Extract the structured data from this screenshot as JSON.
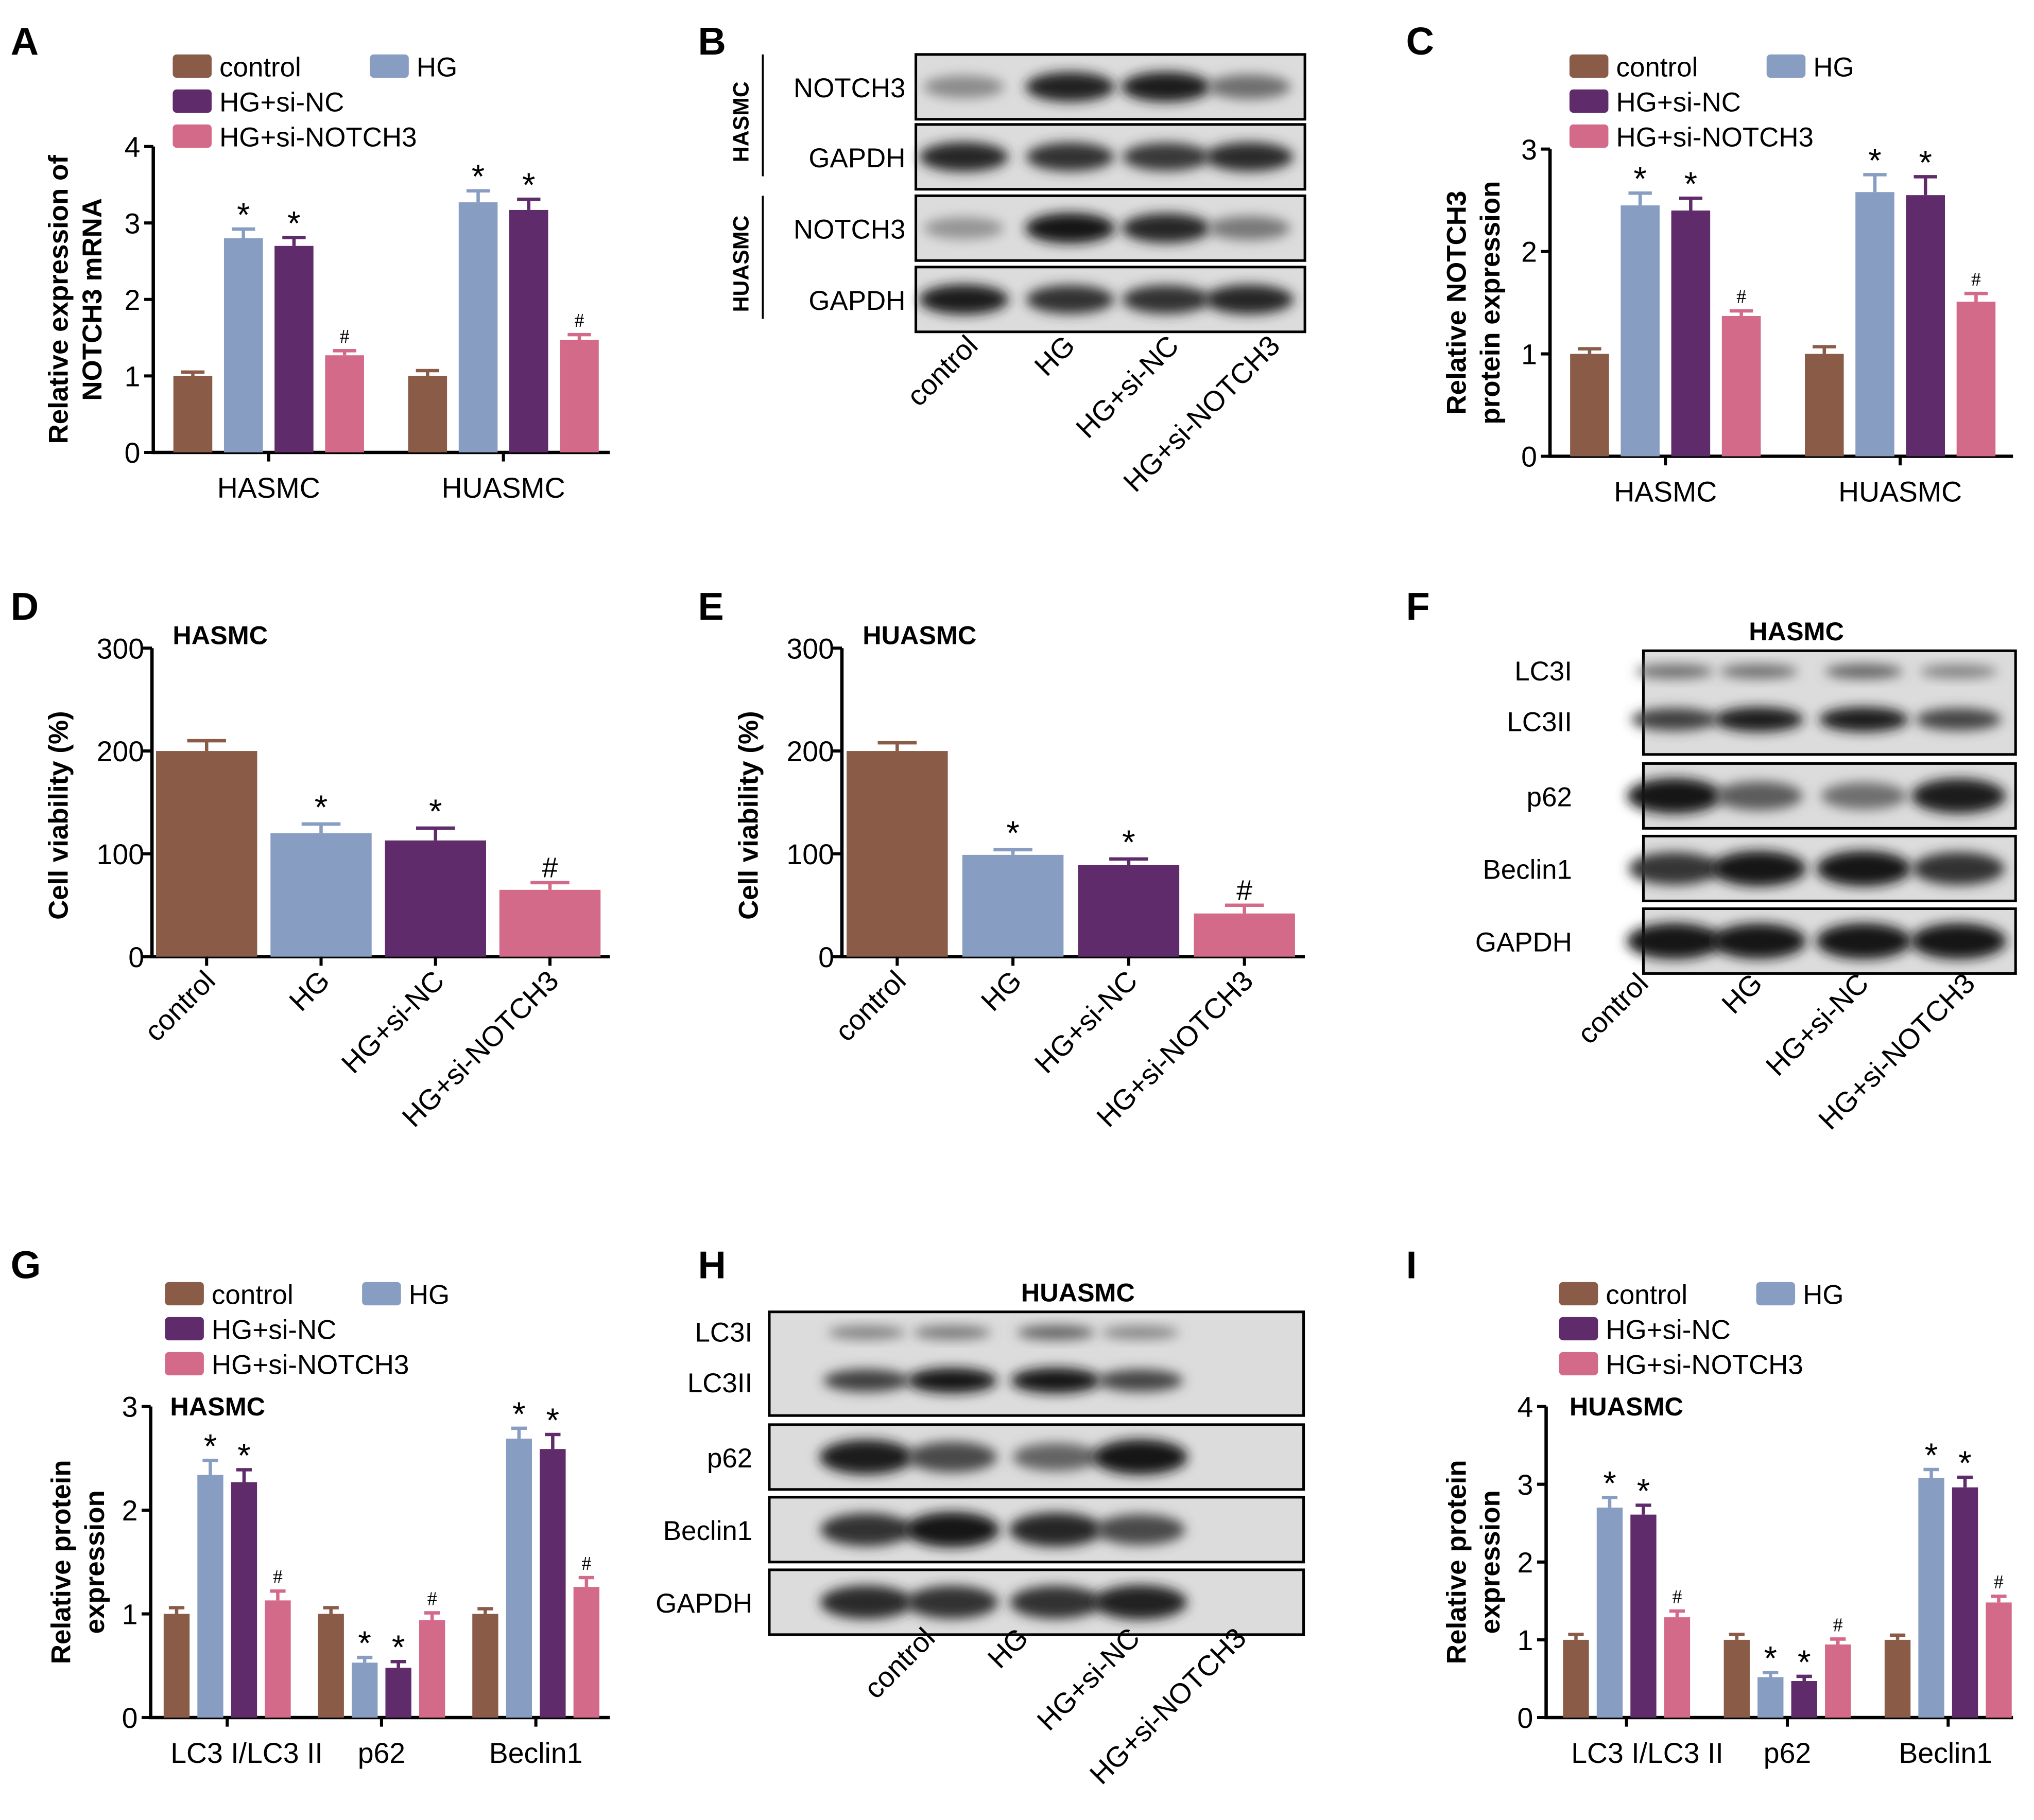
{
  "figure": {
    "colors": {
      "control": "#8a5c48",
      "HG": "#879dc2",
      "HG+si-NC": "#5f2b6a",
      "HG+si-NOTCH3": "#d46a89"
    },
    "groups": [
      "control",
      "HG",
      "HG+si-NC",
      "HG+si-NOTCH3"
    ]
  },
  "chart_data": [
    {
      "panel": "A",
      "type": "bar",
      "title": "",
      "ylabel": "Relative expression of NOTCH3 mRNA",
      "ylabel_lines": [
        "Relative expression of",
        "NOTCH3 mRNA"
      ],
      "xlabel": "",
      "ylim": [
        0,
        4
      ],
      "yticks": [
        "0",
        "1",
        "2",
        "3",
        "4"
      ],
      "categories": [
        "HASMC",
        "HUASMC"
      ],
      "legend": [
        "control",
        "HG",
        "HG+si-NC",
        "HG+si-NOTCH3"
      ],
      "legend_position": "top",
      "series": [
        {
          "name": "control",
          "values": [
            1.0,
            1.0
          ],
          "errors": [
            0.05,
            0.07
          ],
          "marks": [
            "",
            ""
          ]
        },
        {
          "name": "HG",
          "values": [
            2.8,
            3.27
          ],
          "errors": [
            0.12,
            0.15
          ],
          "marks": [
            "*",
            "*"
          ]
        },
        {
          "name": "HG+si-NC",
          "values": [
            2.7,
            3.17
          ],
          "errors": [
            0.11,
            0.14
          ],
          "marks": [
            "*",
            "*"
          ]
        },
        {
          "name": "HG+si-NOTCH3",
          "values": [
            1.27,
            1.47
          ],
          "errors": [
            0.06,
            0.07
          ],
          "marks": [
            "#",
            "#"
          ]
        }
      ]
    },
    {
      "panel": "C",
      "type": "bar",
      "title": "",
      "ylabel": "Relative NOTCH3 protein expression",
      "ylabel_lines": [
        "Relative NOTCH3",
        "protein expression"
      ],
      "xlabel": "",
      "ylim": [
        0,
        3
      ],
      "yticks": [
        "0",
        "1",
        "2",
        "3"
      ],
      "categories": [
        "HASMC",
        "HUASMC"
      ],
      "legend": [
        "control",
        "HG",
        "HG+si-NC",
        "HG+si-NOTCH3"
      ],
      "legend_position": "top",
      "series": [
        {
          "name": "control",
          "values": [
            1.0,
            1.0
          ],
          "errors": [
            0.05,
            0.07
          ],
          "marks": [
            "",
            ""
          ]
        },
        {
          "name": "HG",
          "values": [
            2.45,
            2.58
          ],
          "errors": [
            0.12,
            0.17
          ],
          "marks": [
            "*",
            "*"
          ]
        },
        {
          "name": "HG+si-NC",
          "values": [
            2.4,
            2.55
          ],
          "errors": [
            0.12,
            0.18
          ],
          "marks": [
            "*",
            "*"
          ]
        },
        {
          "name": "HG+si-NOTCH3",
          "values": [
            1.37,
            1.51
          ],
          "errors": [
            0.05,
            0.08
          ],
          "marks": [
            "#",
            "#"
          ]
        }
      ]
    },
    {
      "panel": "D",
      "type": "bar",
      "title": "HASMC",
      "ylabel": "Cell viability (%)",
      "ylabel_lines": [
        "Cell viability (%)"
      ],
      "xlabel": "",
      "ylim": [
        0,
        300
      ],
      "yticks": [
        "0",
        "100",
        "200",
        "300"
      ],
      "categories": [
        "control",
        "HG",
        "HG+si-NC",
        "HG+si-NOTCH3"
      ],
      "values": [
        200,
        120,
        113,
        65
      ],
      "errors": [
        10,
        9,
        12,
        7
      ],
      "marks": [
        "",
        "*",
        "*",
        "#"
      ]
    },
    {
      "panel": "E",
      "type": "bar",
      "title": "HUASMC",
      "ylabel": "Cell viability (%)",
      "ylabel_lines": [
        "Cell viability (%)"
      ],
      "xlabel": "",
      "ylim": [
        0,
        300
      ],
      "yticks": [
        "0",
        "100",
        "200",
        "300"
      ],
      "categories": [
        "control",
        "HG",
        "HG+si-NC",
        "HG+si-NOTCH3"
      ],
      "values": [
        200,
        99,
        89,
        42
      ],
      "errors": [
        8,
        5,
        6,
        8
      ],
      "marks": [
        "",
        "*",
        "*",
        "#"
      ]
    },
    {
      "panel": "G",
      "type": "bar",
      "title": "HASMC",
      "ylabel": "Relative protein expression",
      "ylabel_lines": [
        "Relative protein",
        "expression"
      ],
      "xlabel": "",
      "ylim": [
        0,
        3
      ],
      "yticks": [
        "0",
        "1",
        "2",
        "3"
      ],
      "categories": [
        "LC3 I/LC3 II",
        "p62",
        "Beclin1"
      ],
      "legend": [
        "control",
        "HG",
        "HG+si-NC",
        "HG+si-NOTCH3"
      ],
      "legend_position": "top",
      "series": [
        {
          "name": "control",
          "values": [
            1.0,
            1.0,
            1.0
          ],
          "errors": [
            0.06,
            0.06,
            0.05
          ],
          "marks": [
            "",
            "",
            ""
          ]
        },
        {
          "name": "HG",
          "values": [
            2.34,
            0.53,
            2.69
          ],
          "errors": [
            0.14,
            0.05,
            0.1
          ],
          "marks": [
            "*",
            "*",
            "*"
          ]
        },
        {
          "name": "HG+si-NC",
          "values": [
            2.27,
            0.48,
            2.59
          ],
          "errors": [
            0.12,
            0.06,
            0.14
          ],
          "marks": [
            "*",
            "*",
            "*"
          ]
        },
        {
          "name": "HG+si-NOTCH3",
          "values": [
            1.13,
            0.94,
            1.26
          ],
          "errors": [
            0.09,
            0.07,
            0.09
          ],
          "marks": [
            "#",
            "#",
            "#"
          ]
        }
      ]
    },
    {
      "panel": "I",
      "type": "bar",
      "title": "HUASMC",
      "ylabel": "Relative protein expression",
      "ylabel_lines": [
        "Relative protein",
        "expression"
      ],
      "xlabel": "",
      "ylim": [
        0,
        4
      ],
      "yticks": [
        "0",
        "1",
        "2",
        "3",
        "4"
      ],
      "categories": [
        "LC3 I/LC3 II",
        "p62",
        "Beclin1"
      ],
      "legend": [
        "control",
        "HG",
        "HG+si-NC",
        "HG+si-NOTCH3"
      ],
      "legend_position": "top",
      "series": [
        {
          "name": "control",
          "values": [
            1.0,
            1.0,
            1.0
          ],
          "errors": [
            0.07,
            0.07,
            0.06
          ],
          "marks": [
            "",
            "",
            ""
          ]
        },
        {
          "name": "HG",
          "values": [
            2.7,
            0.52,
            3.08
          ],
          "errors": [
            0.13,
            0.06,
            0.11
          ],
          "marks": [
            "*",
            "*",
            "*"
          ]
        },
        {
          "name": "HG+si-NC",
          "values": [
            2.61,
            0.47,
            2.96
          ],
          "errors": [
            0.12,
            0.06,
            0.13
          ],
          "marks": [
            "*",
            "*",
            "*"
          ]
        },
        {
          "name": "HG+si-NOTCH3",
          "values": [
            1.29,
            0.94,
            1.48
          ],
          "errors": [
            0.08,
            0.07,
            0.08
          ],
          "marks": [
            "#",
            "#",
            "#"
          ]
        }
      ]
    }
  ],
  "blots": [
    {
      "panel": "B",
      "title": "",
      "lanes": [
        "control",
        "HG",
        "HG+si-NC",
        "HG+si-NOTCH3"
      ],
      "groups": [
        {
          "label": "HASMC",
          "rows": [
            {
              "label": "NOTCH3",
              "intensity": [
                0.35,
                0.9,
                0.92,
                0.5
              ]
            },
            {
              "label": "GAPDH",
              "intensity": [
                0.88,
                0.82,
                0.78,
                0.85
              ]
            }
          ]
        },
        {
          "label": "HUASMC",
          "rows": [
            {
              "label": "NOTCH3",
              "intensity": [
                0.3,
                0.95,
                0.88,
                0.45
              ]
            },
            {
              "label": "GAPDH",
              "intensity": [
                0.92,
                0.82,
                0.82,
                0.88
              ]
            }
          ]
        }
      ]
    },
    {
      "panel": "F",
      "title": "HASMC",
      "lanes": [
        "control",
        "HG",
        "HG+si-NC",
        "HG+si-NOTCH3"
      ],
      "rows": [
        {
          "label": "LC3I",
          "label2": "LC3II",
          "intensity": [
            0.5,
            0.5,
            0.55,
            0.4
          ],
          "intensity2": [
            0.75,
            0.92,
            0.92,
            0.72
          ]
        },
        {
          "label": "p62",
          "intensity": [
            0.95,
            0.6,
            0.5,
            0.92
          ]
        },
        {
          "label": "Beclin1",
          "intensity": [
            0.8,
            0.95,
            0.95,
            0.82
          ]
        },
        {
          "label": "GAPDH",
          "intensity": [
            0.98,
            0.95,
            0.98,
            0.98
          ]
        }
      ]
    },
    {
      "panel": "H",
      "title": "HUASMC",
      "lanes": [
        "control",
        "HG",
        "HG+si-NC",
        "HG+si-NOTCH3"
      ],
      "rows": [
        {
          "label": "LC3I",
          "label2": "LC3II",
          "intensity": [
            0.4,
            0.45,
            0.55,
            0.38
          ],
          "intensity2": [
            0.75,
            0.95,
            0.97,
            0.72
          ]
        },
        {
          "label": "p62",
          "intensity": [
            0.92,
            0.7,
            0.55,
            0.95
          ]
        },
        {
          "label": "Beclin1",
          "intensity": [
            0.82,
            0.95,
            0.88,
            0.7
          ]
        },
        {
          "label": "GAPDH",
          "intensity": [
            0.85,
            0.82,
            0.82,
            0.9
          ]
        }
      ]
    }
  ],
  "panel_labels": [
    "A",
    "B",
    "C",
    "D",
    "E",
    "F",
    "G",
    "H",
    "I"
  ]
}
